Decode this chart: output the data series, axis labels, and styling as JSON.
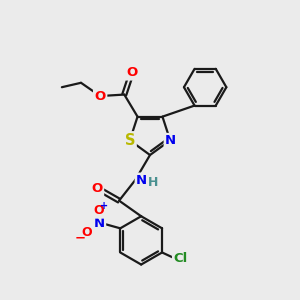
{
  "bg_color": "#ebebeb",
  "bond_color": "#1a1a1a",
  "bond_width": 1.6,
  "atom_colors": {
    "O": "#ff0000",
    "N": "#0000ee",
    "S": "#b8b800",
    "Cl": "#228b22",
    "C": "#1a1a1a",
    "H": "#4a9090"
  },
  "fs": 9.5,
  "fss": 8.0
}
